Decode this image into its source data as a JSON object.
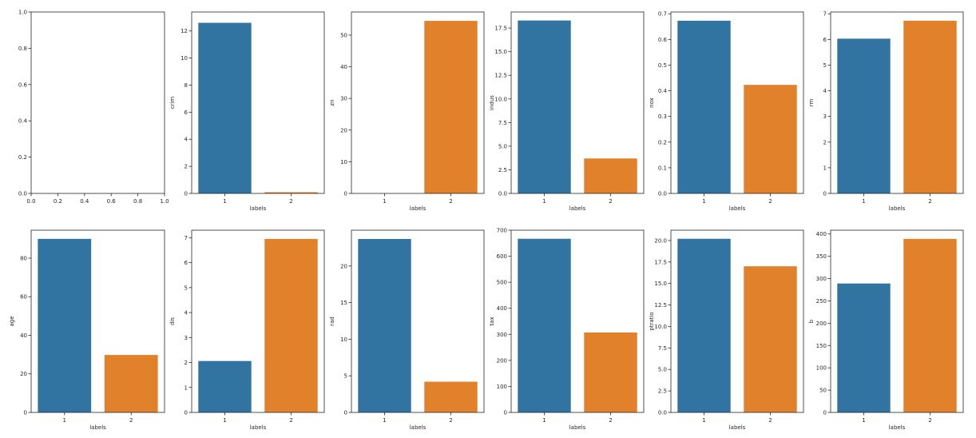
{
  "colors": {
    "series_1": "#3274a1",
    "series_2": "#e1812c",
    "axis": "#262626"
  },
  "chart_data": [
    {
      "type": "empty",
      "xlim": [
        0,
        1
      ],
      "ylim": [
        0,
        1
      ],
      "xticks": [
        "0.0",
        "0.2",
        "0.4",
        "0.6",
        "0.8",
        "1.0"
      ],
      "yticks": [
        "0.0",
        "0.2",
        "0.4",
        "0.6",
        "0.8",
        "1.0"
      ]
    },
    {
      "type": "bar",
      "xlabel": "labels",
      "ylabel": "crim",
      "categories": [
        "1",
        "2"
      ],
      "values": [
        12.6,
        0.09
      ],
      "ylim": [
        0,
        13.4
      ],
      "yticks": [
        "0",
        "2",
        "4",
        "6",
        "8",
        "10",
        "12"
      ]
    },
    {
      "type": "bar",
      "xlabel": "labels",
      "ylabel": "zn",
      "categories": [
        "1",
        "2"
      ],
      "values": [
        0,
        54.5
      ],
      "ylim": [
        0,
        57.3
      ],
      "yticks": [
        "0",
        "10",
        "20",
        "30",
        "40",
        "50"
      ]
    },
    {
      "type": "bar",
      "xlabel": "labels",
      "ylabel": "indus",
      "categories": [
        "1",
        "2"
      ],
      "values": [
        18.3,
        3.7
      ],
      "ylim": [
        0,
        19.2
      ],
      "yticks": [
        "0.0",
        "2.5",
        "5.0",
        "7.5",
        "10.0",
        "12.5",
        "15.0",
        "17.5"
      ]
    },
    {
      "type": "bar",
      "xlabel": "labels",
      "ylabel": "nox",
      "categories": [
        "1",
        "2"
      ],
      "values": [
        0.673,
        0.423
      ],
      "ylim": [
        0,
        0.707
      ],
      "yticks": [
        "0.0",
        "0.1",
        "0.2",
        "0.3",
        "0.4",
        "0.5",
        "0.6",
        "0.7"
      ]
    },
    {
      "type": "bar",
      "xlabel": "labels",
      "ylabel": "rm",
      "categories": [
        "1",
        "2"
      ],
      "values": [
        6.03,
        6.73
      ],
      "ylim": [
        0,
        7.07
      ],
      "yticks": [
        "0",
        "1",
        "2",
        "3",
        "4",
        "5",
        "6",
        "7"
      ]
    },
    {
      "type": "bar",
      "xlabel": "labels",
      "ylabel": "age",
      "categories": [
        "1",
        "2"
      ],
      "values": [
        90.0,
        29.8
      ],
      "ylim": [
        0,
        94.5
      ],
      "yticks": [
        "0",
        "20",
        "40",
        "60",
        "80"
      ]
    },
    {
      "type": "bar",
      "xlabel": "labels",
      "ylabel": "dis",
      "categories": [
        "1",
        "2"
      ],
      "values": [
        2.06,
        6.95
      ],
      "ylim": [
        0,
        7.3
      ],
      "yticks": [
        "0",
        "1",
        "2",
        "3",
        "4",
        "5",
        "6",
        "7"
      ]
    },
    {
      "type": "bar",
      "xlabel": "labels",
      "ylabel": "rad",
      "categories": [
        "1",
        "2"
      ],
      "values": [
        23.7,
        4.2
      ],
      "ylim": [
        0,
        24.9
      ],
      "yticks": [
        "0",
        "5",
        "10",
        "15",
        "20"
      ]
    },
    {
      "type": "bar",
      "xlabel": "labels",
      "ylabel": "tax",
      "categories": [
        "1",
        "2"
      ],
      "values": [
        667,
        307
      ],
      "ylim": [
        0,
        700
      ],
      "yticks": [
        "0",
        "100",
        "200",
        "300",
        "400",
        "500",
        "600",
        "700"
      ]
    },
    {
      "type": "bar",
      "xlabel": "labels",
      "ylabel": "ptratio",
      "categories": [
        "1",
        "2"
      ],
      "values": [
        20.2,
        17.0
      ],
      "ylim": [
        0,
        21.2
      ],
      "yticks": [
        "0.0",
        "2.5",
        "5.0",
        "7.5",
        "10.0",
        "12.5",
        "15.0",
        "17.5",
        "20.0"
      ]
    },
    {
      "type": "bar",
      "xlabel": "labels",
      "ylabel": "b",
      "categories": [
        "1",
        "2"
      ],
      "values": [
        289,
        389
      ],
      "ylim": [
        0,
        408.5
      ],
      "yticks": [
        "0",
        "50",
        "100",
        "150",
        "200",
        "250",
        "300",
        "350",
        "400"
      ]
    }
  ]
}
